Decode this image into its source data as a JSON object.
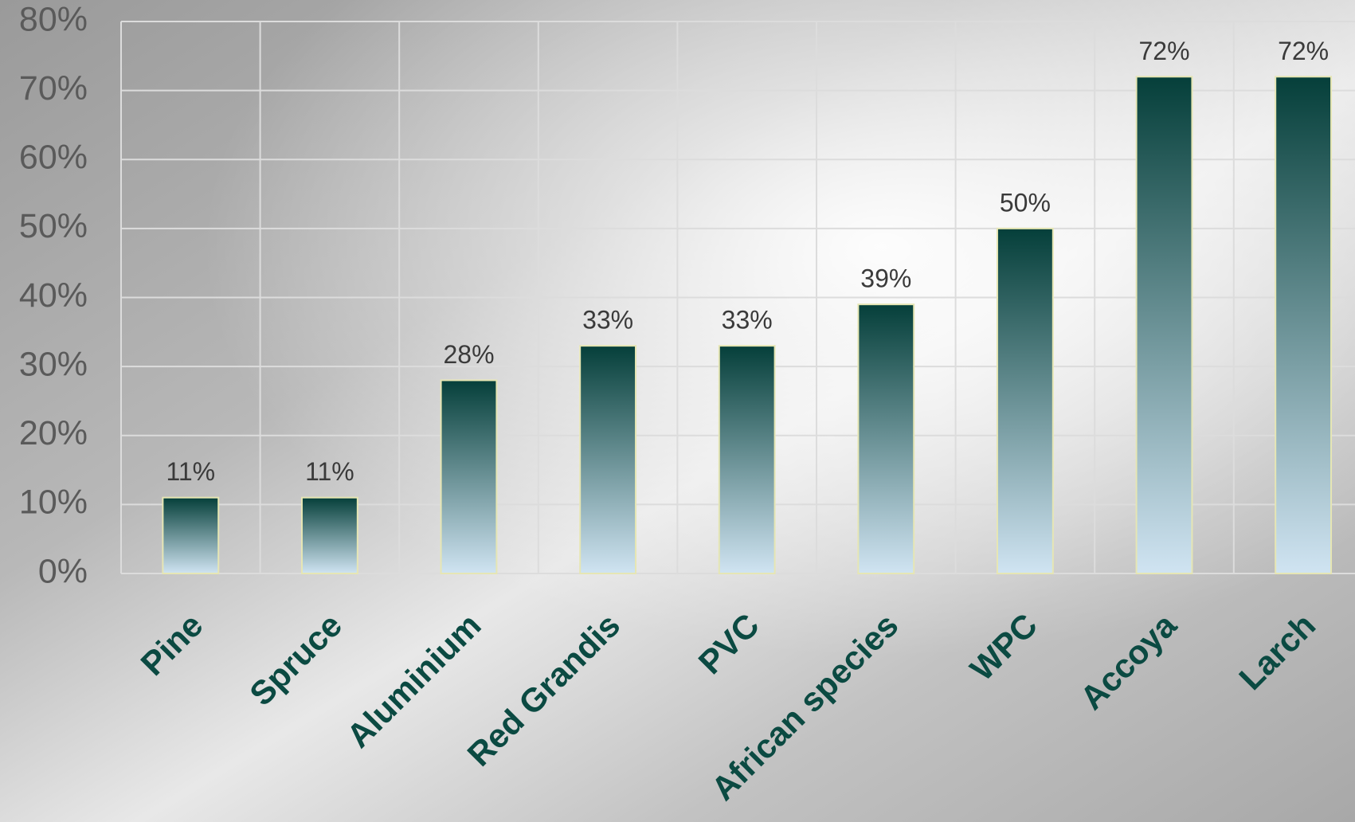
{
  "chart_data": {
    "type": "bar",
    "categories": [
      "Pine",
      "Spruce",
      "Aluminium",
      "Red Grandis",
      "PVC",
      "African species",
      "WPC",
      "Accoya",
      "Larch"
    ],
    "values": [
      11,
      11,
      28,
      33,
      33,
      39,
      50,
      72,
      72
    ],
    "value_labels": [
      "11%",
      "11%",
      "28%",
      "33%",
      "33%",
      "39%",
      "50%",
      "72%",
      "72%"
    ],
    "ylim": [
      0,
      80
    ],
    "yticks": [
      {
        "value": 0,
        "label": "0%"
      },
      {
        "value": 10,
        "label": "10%"
      },
      {
        "value": 20,
        "label": "20%"
      },
      {
        "value": 30,
        "label": "30%"
      },
      {
        "value": 40,
        "label": "40%"
      },
      {
        "value": 50,
        "label": "50%"
      },
      {
        "value": 60,
        "label": "60%"
      },
      {
        "value": 70,
        "label": "70%"
      },
      {
        "value": 80,
        "label": "80%"
      }
    ],
    "grid": true,
    "color": [
      "#053f3a",
      "#d0e4f2"
    ]
  }
}
